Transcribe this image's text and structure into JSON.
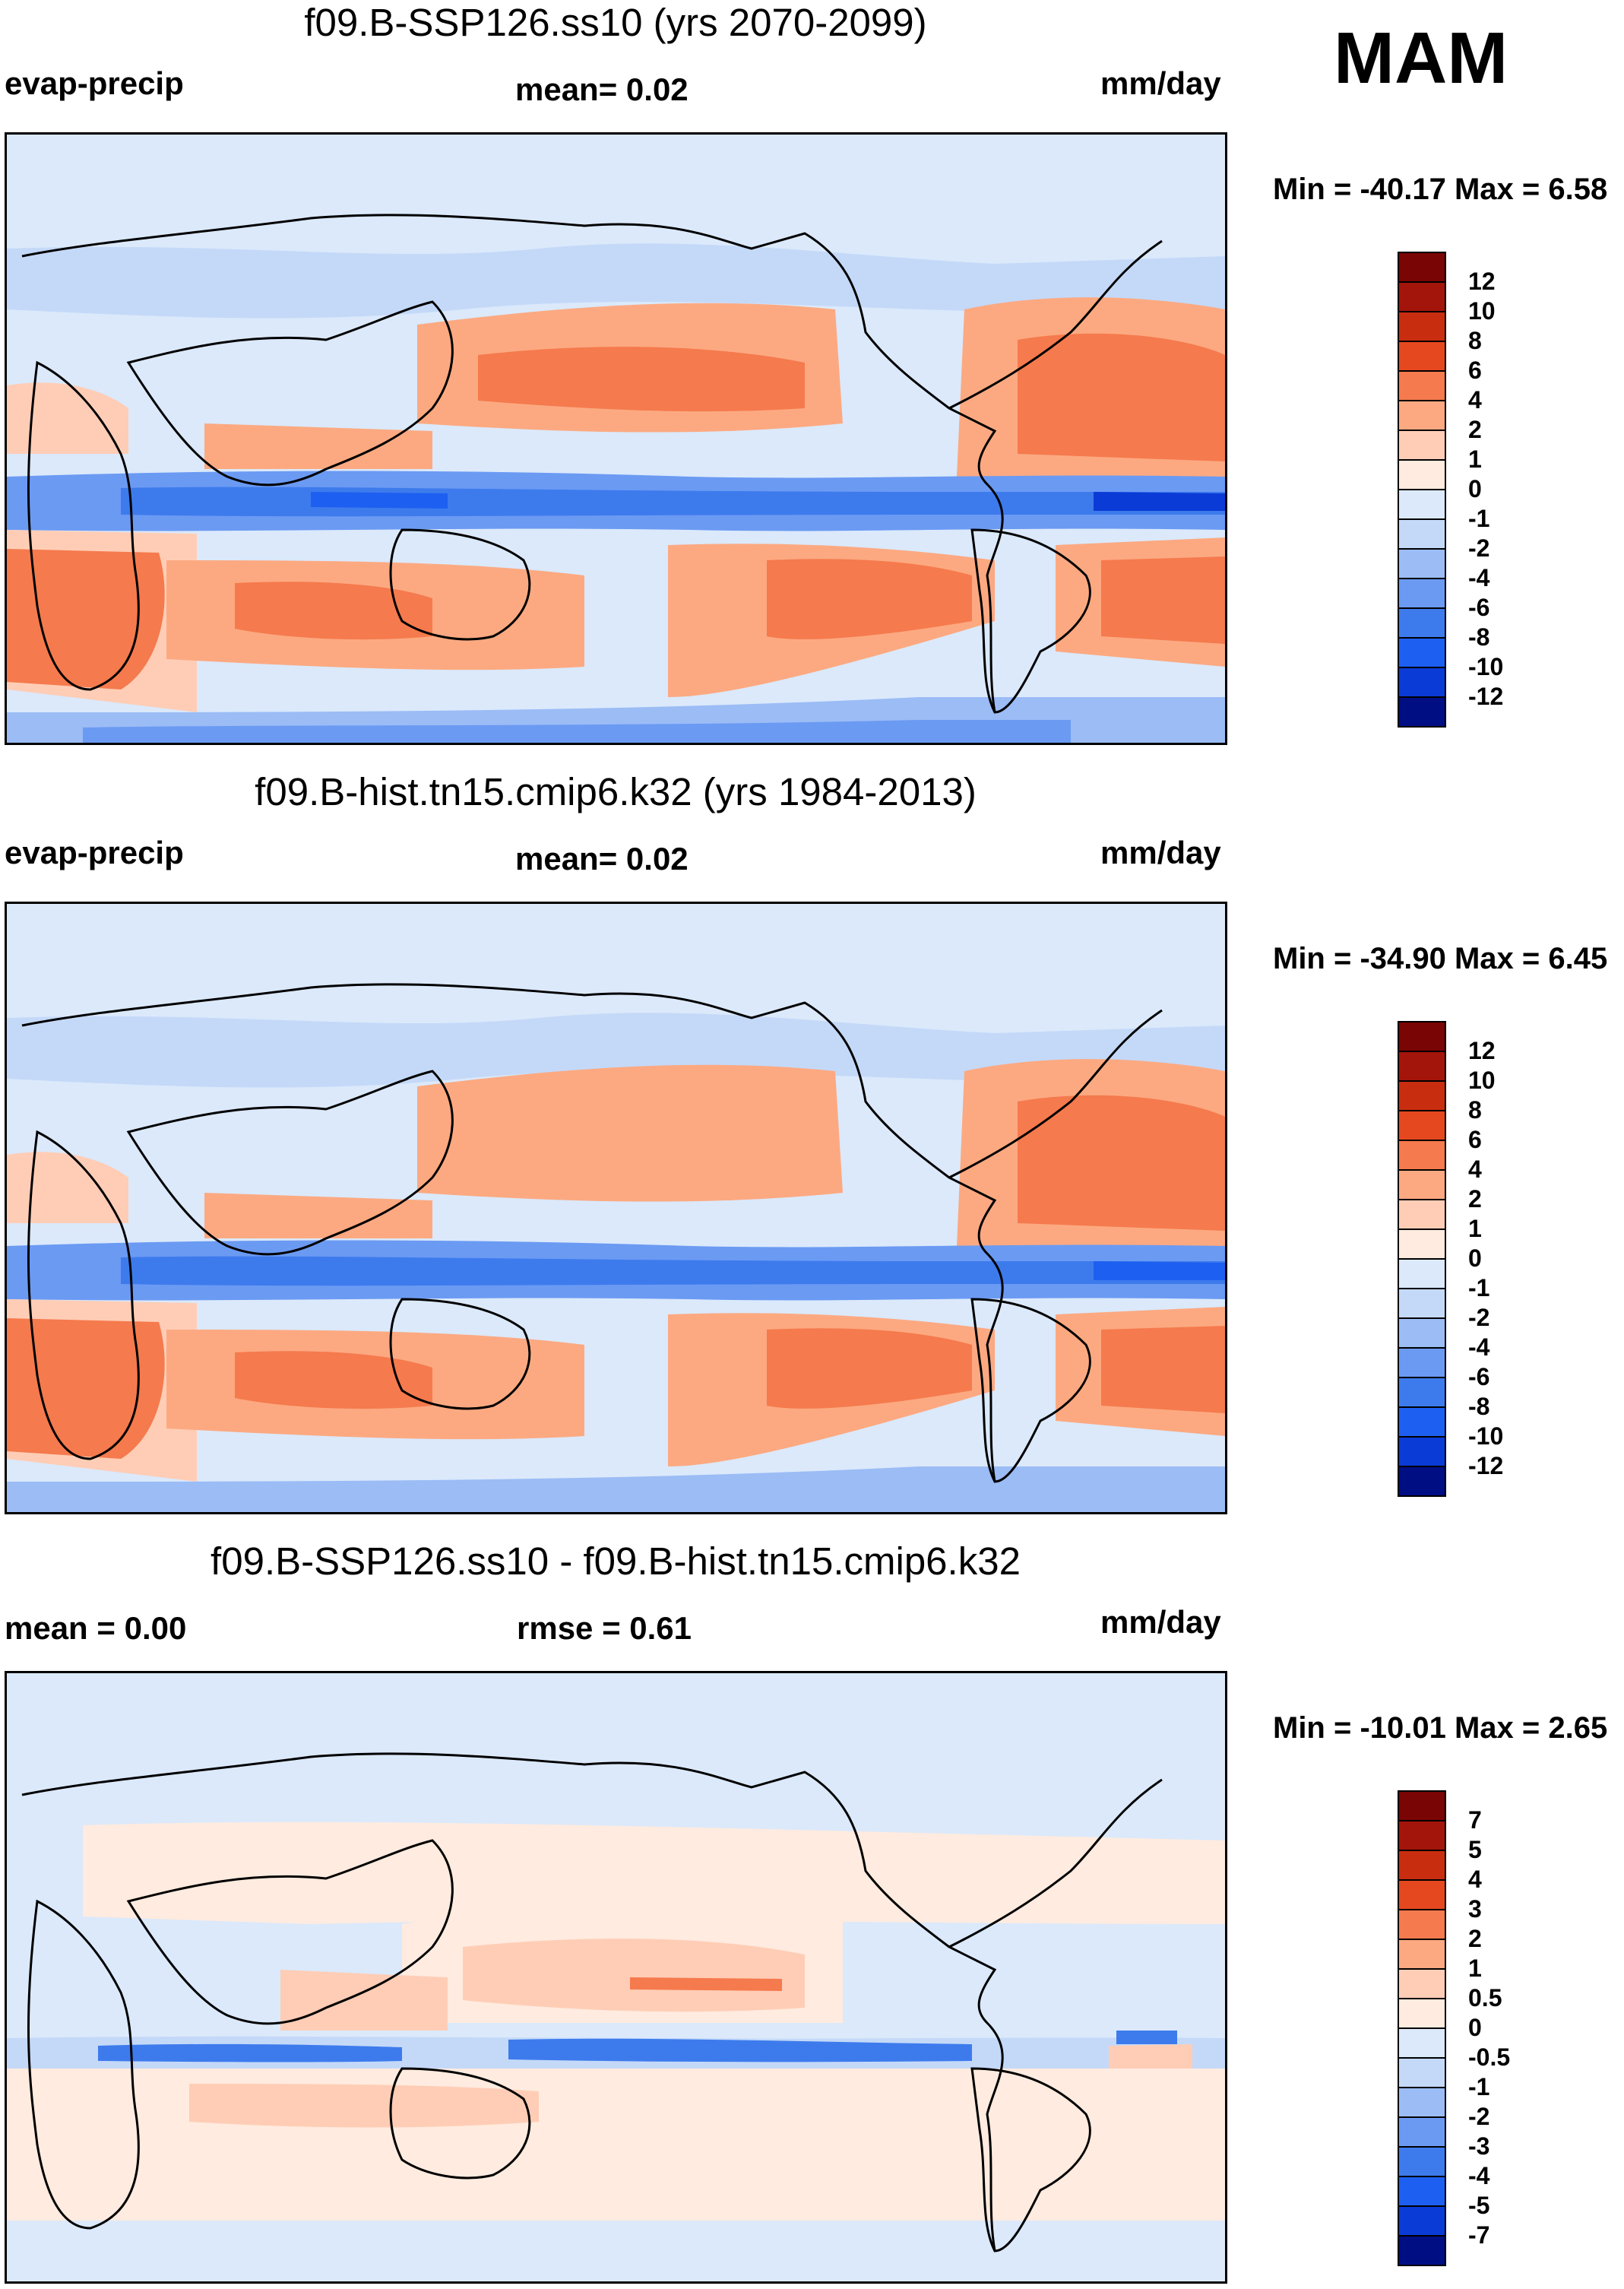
{
  "season": "MAM",
  "colors": {
    "neg": [
      "#000e84",
      "#0a22b2",
      "#0b3bd6",
      "#1d5ff0",
      "#3d7bed",
      "#6b9af3",
      "#9bbcf5",
      "#c4d9f8",
      "#dbe9fb"
    ],
    "pos": [
      "#ffebdf",
      "#ffcdb6",
      "#fca981",
      "#f57a4d",
      "#e5481f",
      "#c92d10",
      "#a3150a",
      "#7a0505"
    ],
    "land_outline": "#000000"
  },
  "panels": [
    {
      "title": "f09.B-SSP126.ss10 (yrs 2070-2099)",
      "left_label": "evap-precip",
      "center_label": "mean=   0.02",
      "right_label": "mm/day",
      "minmax": "Min = -40.17 Max =   6.58",
      "levels": [
        "12",
        "10",
        "8",
        "6",
        "4",
        "2",
        "1",
        "0",
        "-1",
        "-2",
        "-4",
        "-6",
        "-8",
        "-10",
        "-12"
      ]
    },
    {
      "title": "f09.B-hist.tn15.cmip6.k32 (yrs 1984-2013)",
      "left_label": "evap-precip",
      "center_label": "mean=   0.02",
      "right_label": "mm/day",
      "minmax": "Min = -34.90 Max =   6.45",
      "levels": [
        "12",
        "10",
        "8",
        "6",
        "4",
        "2",
        "1",
        "0",
        "-1",
        "-2",
        "-4",
        "-6",
        "-8",
        "-10",
        "-12"
      ]
    },
    {
      "title": "f09.B-SSP126.ss10 - f09.B-hist.tn15.cmip6.k32",
      "left_label": "mean =   0.00",
      "center_label": "rmse =   0.61",
      "right_label": "mm/day",
      "minmax": "Min = -10.01 Max =   2.65",
      "levels": [
        "7",
        "5",
        "4",
        "3",
        "2",
        "1",
        "0.5",
        "0",
        "-0.5",
        "-1",
        "-2",
        "-3",
        "-4",
        "-5",
        "-7"
      ]
    }
  ]
}
